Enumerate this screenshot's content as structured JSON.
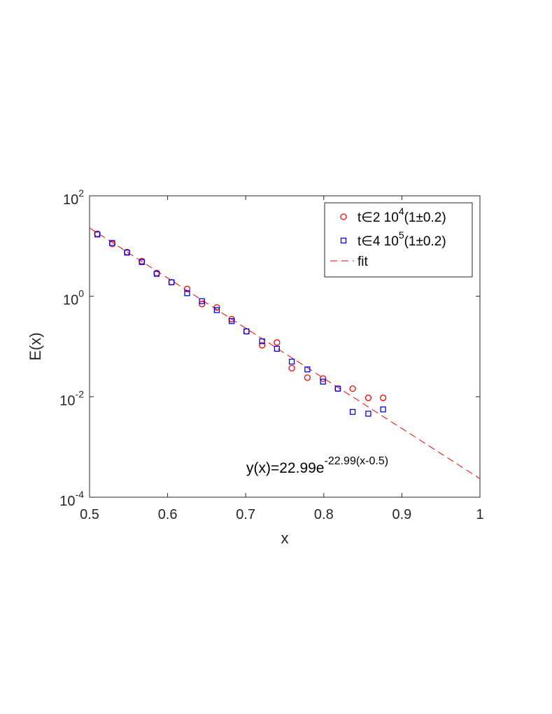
{
  "chart_data": {
    "type": "scatter",
    "xlabel": "x",
    "ylabel": "E(x)",
    "xlim": [
      0.5,
      1
    ],
    "ylim": [
      0.0001,
      100
    ],
    "yscale": "log",
    "grid": false,
    "legend_position": "top-right",
    "x_ticks": [
      "0.5",
      "0.6",
      "0.7",
      "0.8",
      "0.9",
      "1"
    ],
    "y_ticks": [
      {
        "base": "10",
        "exp": "-4"
      },
      {
        "base": "10",
        "exp": "-2"
      },
      {
        "base": "10",
        "exp": "0"
      },
      {
        "base": "10",
        "exp": "2"
      }
    ],
    "series": [
      {
        "name_parts": {
          "pre": "t∈2 10",
          "exp": "4",
          "post": "(1±0.2)"
        },
        "marker": "circle",
        "color": "#ff0000",
        "x": [
          0.51,
          0.529,
          0.548,
          0.567,
          0.586,
          0.605,
          0.625,
          0.644,
          0.663,
          0.682,
          0.701,
          0.721,
          0.74,
          0.759,
          0.779,
          0.799,
          0.818,
          0.837,
          0.857,
          0.876
        ],
        "y": [
          17.5,
          11.0,
          7.6,
          5.0,
          2.9,
          1.9,
          1.4,
          0.7,
          0.6,
          0.35,
          0.2,
          0.106,
          0.12,
          0.037,
          0.024,
          0.023,
          0.0145,
          0.0145,
          0.0095,
          0.0095
        ]
      },
      {
        "name_parts": {
          "pre": "t∈4 10",
          "exp": "5",
          "post": "(1±0.2)"
        },
        "marker": "square",
        "color": "#0000ff",
        "x": [
          0.51,
          0.529,
          0.548,
          0.567,
          0.586,
          0.605,
          0.625,
          0.644,
          0.663,
          0.682,
          0.701,
          0.721,
          0.74,
          0.759,
          0.779,
          0.799,
          0.818,
          0.837,
          0.857,
          0.876
        ],
        "y": [
          17.0,
          11.5,
          7.4,
          4.8,
          2.8,
          1.9,
          1.15,
          0.8,
          0.53,
          0.32,
          0.2,
          0.127,
          0.09,
          0.05,
          0.035,
          0.02,
          0.0145,
          0.005,
          0.0046,
          0.0056
        ]
      }
    ],
    "fit": {
      "name": "fit",
      "color": "#ff0000",
      "dash": true,
      "amplitude": 22.99,
      "rate": 22.99,
      "x0": 0.5
    },
    "annotation": {
      "pre": "y(x)=22.99e",
      "exp": "-22.99(x-0.5)"
    }
  }
}
